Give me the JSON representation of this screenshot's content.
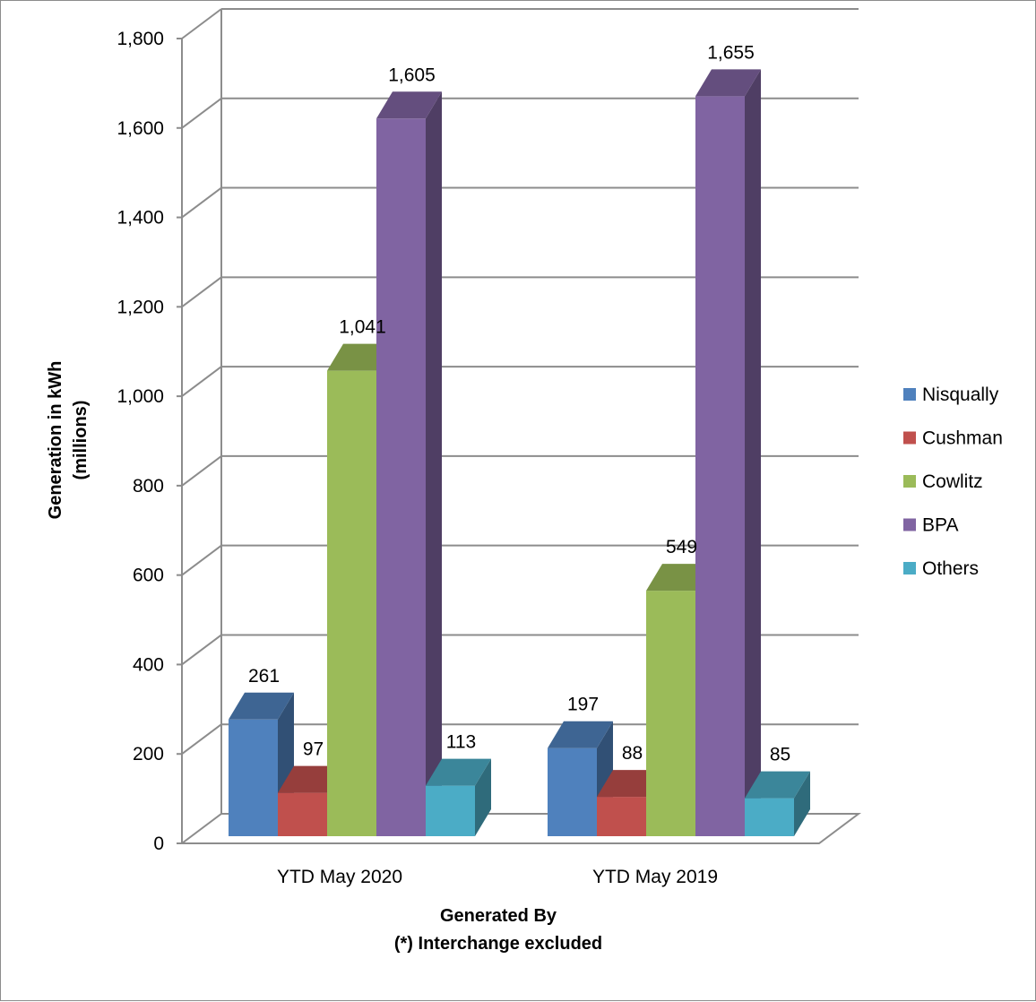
{
  "chart_data": {
    "type": "bar",
    "categories": [
      "YTD May 2020",
      "YTD May 2019"
    ],
    "series": [
      {
        "name": "Nisqually",
        "values": [
          261,
          197
        ],
        "color": "#4f81bd"
      },
      {
        "name": "Cushman",
        "values": [
          97,
          88
        ],
        "color": "#c0504d"
      },
      {
        "name": "Cowlitz",
        "values": [
          1041,
          549
        ],
        "color": "#9bbb59"
      },
      {
        "name": "BPA",
        "values": [
          1605,
          1655
        ],
        "color": "#8064a2"
      },
      {
        "name": "Others",
        "values": [
          113,
          85
        ],
        "color": "#4bacc6"
      }
    ],
    "data_labels": [
      [
        "261",
        "197"
      ],
      [
        "97",
        "88"
      ],
      [
        "1,041",
        "549"
      ],
      [
        "1,605",
        "1,655"
      ],
      [
        "113",
        "85"
      ]
    ],
    "ytick_labels": [
      "0",
      "200",
      "400",
      "600",
      "800",
      "1,000",
      "1,200",
      "1,400",
      "1,600",
      "1,800"
    ],
    "ylim": [
      0,
      1800
    ],
    "ylabel_line1": "Generation in kWh",
    "ylabel_line2": "(millions)",
    "xlabel_line1": "Generated By",
    "xlabel_line2": "(*) Interchange excluded",
    "legend_position": "right",
    "grid": true,
    "style": "3d-clustered-column"
  }
}
